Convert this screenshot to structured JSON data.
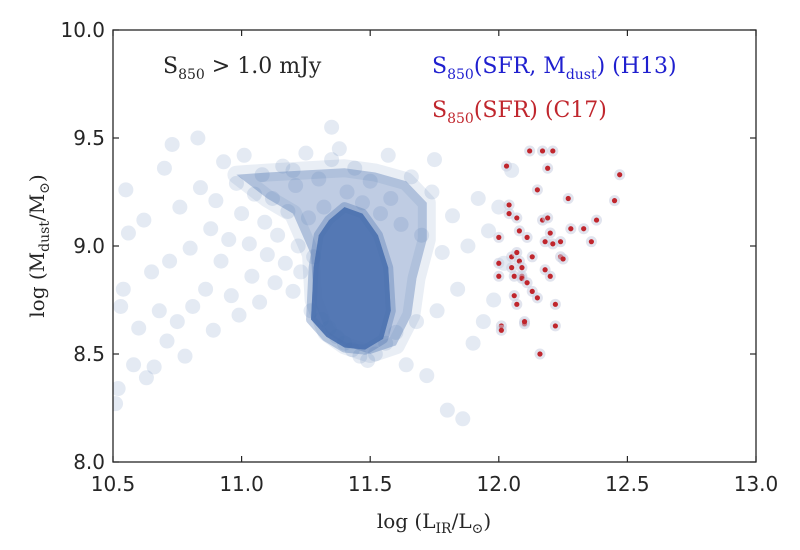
{
  "chart_data": {
    "type": "scatter",
    "title": "",
    "xlabel": {
      "prefix": "log (L",
      "sub": "IR",
      "mid": "/L",
      "sub2": "⊙",
      "suffix": ")"
    },
    "ylabel": {
      "prefix": "log (M",
      "sub": "dust",
      "mid": "/M",
      "sub2": "⊙",
      "suffix": ")"
    },
    "xlim": [
      10.5,
      13.0
    ],
    "ylim": [
      8.0,
      10.0
    ],
    "xticks": [
      "10.5",
      "11.0",
      "11.5",
      "12.0",
      "12.5",
      "13.0"
    ],
    "yticks": [
      "8.0",
      "8.5",
      "9.0",
      "9.5",
      "10.0"
    ],
    "grid": false,
    "annotations": [
      {
        "name": "selection-cut",
        "parts": [
          "S",
          "850",
          " > 1.0 mJy"
        ],
        "color": "#262626"
      },
      {
        "name": "legend-h13",
        "parts": [
          "S",
          "850",
          "(SFR, M",
          "dust",
          ") (H13)"
        ],
        "color": "#1f1fcf"
      },
      {
        "name": "legend-c17",
        "parts": [
          "S",
          "850",
          "(SFR) (C17)"
        ],
        "color": "#c0262d"
      }
    ],
    "series": [
      {
        "name": "H13",
        "color": "#4c72b0",
        "marker": "circle",
        "alpha": 0.15,
        "description": "dense cloud of several thousand simulated galaxies; dense core near log L_IR 11.3–11.6, log M_dust 8.55–9.2",
        "points": [
          [
            10.51,
            8.27
          ],
          [
            10.52,
            8.34
          ],
          [
            10.54,
            8.8
          ],
          [
            10.55,
            9.26
          ],
          [
            10.53,
            8.72
          ],
          [
            10.56,
            9.06
          ],
          [
            10.58,
            8.45
          ],
          [
            10.6,
            8.62
          ],
          [
            10.62,
            9.12
          ],
          [
            10.63,
            8.39
          ],
          [
            10.65,
            8.88
          ],
          [
            10.66,
            8.44
          ],
          [
            10.68,
            8.7
          ],
          [
            10.7,
            9.36
          ],
          [
            10.71,
            8.56
          ],
          [
            10.72,
            8.93
          ],
          [
            10.73,
            9.47
          ],
          [
            10.75,
            8.65
          ],
          [
            10.76,
            9.18
          ],
          [
            10.78,
            8.49
          ],
          [
            10.8,
            8.99
          ],
          [
            10.81,
            8.72
          ],
          [
            10.83,
            9.5
          ],
          [
            10.84,
            9.27
          ],
          [
            10.86,
            8.8
          ],
          [
            10.88,
            9.08
          ],
          [
            10.89,
            8.61
          ],
          [
            10.9,
            9.21
          ],
          [
            10.92,
            8.93
          ],
          [
            10.93,
            9.39
          ],
          [
            10.95,
            9.03
          ],
          [
            10.96,
            8.77
          ],
          [
            10.98,
            9.29
          ],
          [
            10.99,
            8.68
          ],
          [
            11.0,
            9.15
          ],
          [
            11.01,
            9.42
          ],
          [
            11.03,
            9.01
          ],
          [
            11.04,
            8.86
          ],
          [
            11.05,
            9.24
          ],
          [
            11.07,
            8.74
          ],
          [
            11.08,
            9.33
          ],
          [
            11.09,
            9.11
          ],
          [
            11.1,
            8.96
          ],
          [
            11.12,
            9.22
          ],
          [
            11.13,
            8.83
          ],
          [
            11.14,
            9.05
          ],
          [
            11.16,
            9.37
          ],
          [
            11.17,
            8.92
          ],
          [
            11.18,
            9.16
          ],
          [
            11.2,
            8.79
          ],
          [
            11.21,
            9.28
          ],
          [
            11.22,
            9.0
          ],
          [
            11.23,
            8.88
          ],
          [
            11.25,
            9.43
          ],
          [
            11.26,
            9.13
          ],
          [
            11.27,
            8.7
          ],
          [
            11.28,
            8.95
          ],
          [
            11.3,
            9.31
          ],
          [
            11.31,
            8.66
          ],
          [
            11.32,
            9.18
          ],
          [
            11.34,
            8.62
          ],
          [
            11.35,
            9.4
          ],
          [
            11.37,
            8.58
          ],
          [
            11.38,
            9.45
          ],
          [
            11.4,
            8.55
          ],
          [
            11.41,
            9.25
          ],
          [
            11.43,
            8.52
          ],
          [
            11.44,
            9.36
          ],
          [
            11.46,
            8.49
          ],
          [
            11.47,
            9.2
          ],
          [
            11.49,
            8.47
          ],
          [
            11.5,
            9.3
          ],
          [
            11.52,
            8.5
          ],
          [
            11.54,
            9.15
          ],
          [
            11.56,
            8.55
          ],
          [
            11.58,
            9.22
          ],
          [
            11.6,
            8.6
          ],
          [
            11.62,
            9.1
          ],
          [
            11.64,
            8.45
          ],
          [
            11.66,
            9.32
          ],
          [
            11.68,
            8.65
          ],
          [
            11.7,
            9.05
          ],
          [
            11.72,
            8.4
          ],
          [
            11.74,
            9.25
          ],
          [
            11.76,
            8.7
          ],
          [
            11.78,
            8.97
          ],
          [
            11.8,
            8.24
          ],
          [
            11.82,
            9.14
          ],
          [
            11.84,
            8.8
          ],
          [
            11.86,
            8.2
          ],
          [
            11.88,
            9.0
          ],
          [
            11.9,
            8.55
          ],
          [
            11.92,
            9.22
          ],
          [
            11.94,
            8.65
          ],
          [
            11.96,
            9.07
          ],
          [
            11.98,
            8.75
          ],
          [
            12.0,
            9.18
          ],
          [
            12.02,
            8.92
          ],
          [
            12.05,
            9.35
          ],
          [
            11.75,
            9.4
          ],
          [
            11.2,
            9.35
          ],
          [
            11.35,
            9.55
          ],
          [
            11.57,
            9.42
          ]
        ],
        "core_polygon": [
          [
            11.27,
            8.66
          ],
          [
            11.28,
            8.9
          ],
          [
            11.3,
            9.05
          ],
          [
            11.34,
            9.12
          ],
          [
            11.4,
            9.18
          ],
          [
            11.47,
            9.15
          ],
          [
            11.53,
            9.05
          ],
          [
            11.57,
            8.9
          ],
          [
            11.58,
            8.7
          ],
          [
            11.55,
            8.57
          ],
          [
            11.48,
            8.52
          ],
          [
            11.4,
            8.53
          ],
          [
            11.33,
            8.58
          ]
        ],
        "cloud_polygon": [
          [
            10.98,
            9.33
          ],
          [
            11.1,
            9.22
          ],
          [
            11.2,
            9.15
          ],
          [
            11.27,
            8.96
          ],
          [
            11.28,
            8.75
          ],
          [
            11.33,
            8.6
          ],
          [
            11.4,
            8.54
          ],
          [
            11.5,
            8.5
          ],
          [
            11.6,
            8.54
          ],
          [
            11.66,
            8.68
          ],
          [
            11.68,
            8.85
          ],
          [
            11.72,
            9.03
          ],
          [
            11.72,
            9.2
          ],
          [
            11.64,
            9.3
          ],
          [
            11.52,
            9.34
          ],
          [
            11.4,
            9.36
          ],
          [
            11.25,
            9.35
          ],
          [
            11.1,
            9.34
          ]
        ]
      },
      {
        "name": "C17",
        "color": "#c0262d",
        "marker": "dot",
        "points": [
          [
            12.0,
            9.04
          ],
          [
            12.0,
            8.92
          ],
          [
            12.0,
            8.86
          ],
          [
            12.01,
            8.63
          ],
          [
            12.01,
            8.61
          ],
          [
            12.03,
            9.37
          ],
          [
            12.04,
            9.19
          ],
          [
            12.04,
            9.15
          ],
          [
            12.05,
            8.95
          ],
          [
            12.05,
            8.9
          ],
          [
            12.06,
            8.86
          ],
          [
            12.06,
            8.77
          ],
          [
            12.07,
            9.13
          ],
          [
            12.07,
            8.97
          ],
          [
            12.07,
            8.73
          ],
          [
            12.08,
            9.07
          ],
          [
            12.08,
            8.93
          ],
          [
            12.09,
            8.9
          ],
          [
            12.09,
            8.86
          ],
          [
            12.09,
            8.85
          ],
          [
            12.1,
            8.64
          ],
          [
            12.1,
            8.65
          ],
          [
            12.11,
            9.04
          ],
          [
            12.11,
            8.83
          ],
          [
            12.12,
            9.44
          ],
          [
            12.13,
            8.79
          ],
          [
            12.15,
            9.26
          ],
          [
            12.16,
            8.5
          ],
          [
            12.17,
            9.44
          ],
          [
            12.17,
            9.12
          ],
          [
            12.18,
            9.02
          ],
          [
            12.18,
            8.89
          ],
          [
            12.19,
            9.36
          ],
          [
            12.19,
            9.13
          ],
          [
            12.2,
            9.06
          ],
          [
            12.2,
            8.86
          ],
          [
            12.21,
            9.44
          ],
          [
            12.21,
            9.01
          ],
          [
            12.22,
            8.73
          ],
          [
            12.22,
            8.63
          ],
          [
            12.24,
            8.95
          ],
          [
            12.25,
            8.94
          ],
          [
            12.27,
            9.22
          ],
          [
            12.28,
            9.08
          ],
          [
            12.33,
            9.08
          ],
          [
            12.36,
            9.02
          ],
          [
            12.38,
            9.12
          ],
          [
            12.45,
            9.21
          ],
          [
            12.47,
            9.33
          ],
          [
            12.13,
            8.95
          ],
          [
            12.15,
            8.76
          ],
          [
            12.24,
            9.02
          ]
        ]
      }
    ]
  }
}
